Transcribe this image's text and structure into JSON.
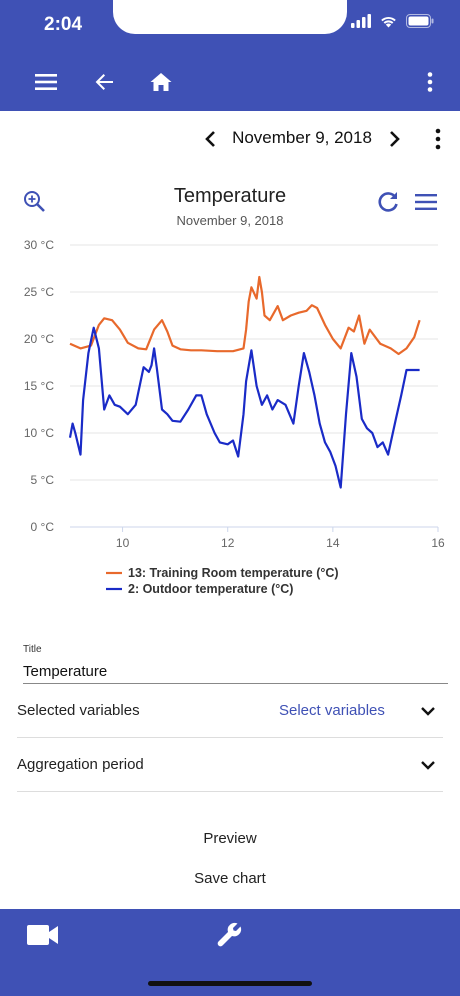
{
  "status": {
    "time": "2:04"
  },
  "appbar": {
    "menu_icon": "hamburger-icon",
    "back_icon": "arrow-left-icon",
    "home_icon": "home-icon",
    "more_icon": "more-vertical-icon",
    "color": "#3f51b5"
  },
  "date_nav": {
    "date": "November 9, 2018"
  },
  "chart": {
    "title": "Temperature",
    "subtitle": "November 9, 2018"
  },
  "chart_data": {
    "type": "line",
    "title": "Temperature",
    "subtitle": "November 9, 2018",
    "xlabel": "",
    "ylabel": "",
    "xlim": [
      9,
      16
    ],
    "ylim": [
      0,
      30
    ],
    "x_ticks": [
      "10",
      "12",
      "14",
      "16"
    ],
    "y_ticks": [
      "0 °C",
      "5 °C",
      "10 °C",
      "15 °C",
      "20 °C",
      "25 °C",
      "30 °C"
    ],
    "grid": true,
    "legend": "bottom",
    "series": [
      {
        "name": "13: Training Room temperature (°C)",
        "color": "#e8692c",
        "x": [
          9.0,
          9.2,
          9.4,
          9.55,
          9.65,
          9.8,
          9.95,
          10.1,
          10.3,
          10.45,
          10.6,
          10.75,
          10.85,
          10.95,
          11.1,
          11.3,
          11.5,
          11.8,
          12.1,
          12.3,
          12.35,
          12.4,
          12.45,
          12.55,
          12.6,
          12.65,
          12.7,
          12.8,
          12.95,
          13.05,
          13.2,
          13.35,
          13.5,
          13.6,
          13.7,
          13.85,
          14.0,
          14.15,
          14.3,
          14.4,
          14.5,
          14.6,
          14.7,
          14.9,
          15.1,
          15.25,
          15.4,
          15.55,
          15.65
        ],
        "values": [
          19.5,
          19.0,
          19.3,
          21.5,
          22.2,
          22.0,
          21.0,
          19.6,
          19.0,
          18.9,
          21.0,
          22.0,
          20.8,
          19.3,
          18.9,
          18.8,
          18.8,
          18.7,
          18.7,
          19.0,
          21.0,
          24.0,
          25.5,
          24.3,
          26.6,
          25.0,
          22.5,
          22.0,
          23.5,
          22.0,
          22.5,
          22.8,
          23.0,
          23.6,
          23.3,
          21.5,
          20.0,
          19.0,
          21.2,
          20.8,
          22.5,
          19.5,
          21.0,
          19.5,
          19.0,
          18.4,
          19.0,
          20.2,
          22.0
        ]
      },
      {
        "name": "2: Outdoor temperature (°C)",
        "color": "#1a2bc7",
        "x": [
          9.0,
          9.05,
          9.1,
          9.2,
          9.25,
          9.35,
          9.45,
          9.55,
          9.65,
          9.75,
          9.85,
          9.95,
          10.1,
          10.25,
          10.4,
          10.5,
          10.55,
          10.6,
          10.65,
          10.75,
          10.85,
          10.95,
          11.1,
          11.25,
          11.4,
          11.5,
          11.6,
          11.75,
          11.85,
          12.0,
          12.1,
          12.2,
          12.3,
          12.35,
          12.45,
          12.55,
          12.65,
          12.75,
          12.85,
          12.95,
          13.1,
          13.25,
          13.35,
          13.45,
          13.55,
          13.65,
          13.75,
          13.85,
          13.95,
          14.05,
          14.15,
          14.25,
          14.35,
          14.45,
          14.55,
          14.65,
          14.75,
          14.85,
          14.95,
          15.05,
          15.2,
          15.3,
          15.4,
          15.5,
          15.6,
          15.65
        ],
        "values": [
          9.5,
          11.0,
          10.0,
          7.7,
          13.5,
          18.5,
          21.2,
          19.0,
          12.5,
          14.0,
          13.0,
          12.8,
          12.0,
          13.0,
          17.0,
          16.5,
          17.2,
          19.0,
          17.0,
          12.5,
          12.0,
          11.3,
          11.2,
          12.5,
          14.0,
          14.0,
          12.0,
          10.0,
          9.0,
          8.8,
          9.2,
          7.5,
          12.0,
          15.5,
          18.8,
          15.0,
          13.0,
          14.0,
          12.5,
          13.5,
          13.0,
          11.0,
          15.0,
          18.5,
          16.5,
          14.0,
          11.0,
          9.0,
          8.0,
          6.5,
          4.2,
          12.0,
          18.5,
          16.0,
          11.5,
          10.5,
          10.0,
          8.5,
          9.0,
          7.7,
          11.5,
          14.0,
          16.7,
          16.7,
          16.7,
          16.7
        ]
      }
    ]
  },
  "form": {
    "title_label": "Title",
    "title_value": "Temperature",
    "variables_label": "Selected variables",
    "variables_value": "Select variables",
    "aggregation_label": "Aggregation period",
    "preview_label": "Preview",
    "save_label": "Save chart"
  },
  "bottombar": {
    "left_icon": "video-camera-icon",
    "center_icon": "wrench-icon"
  }
}
